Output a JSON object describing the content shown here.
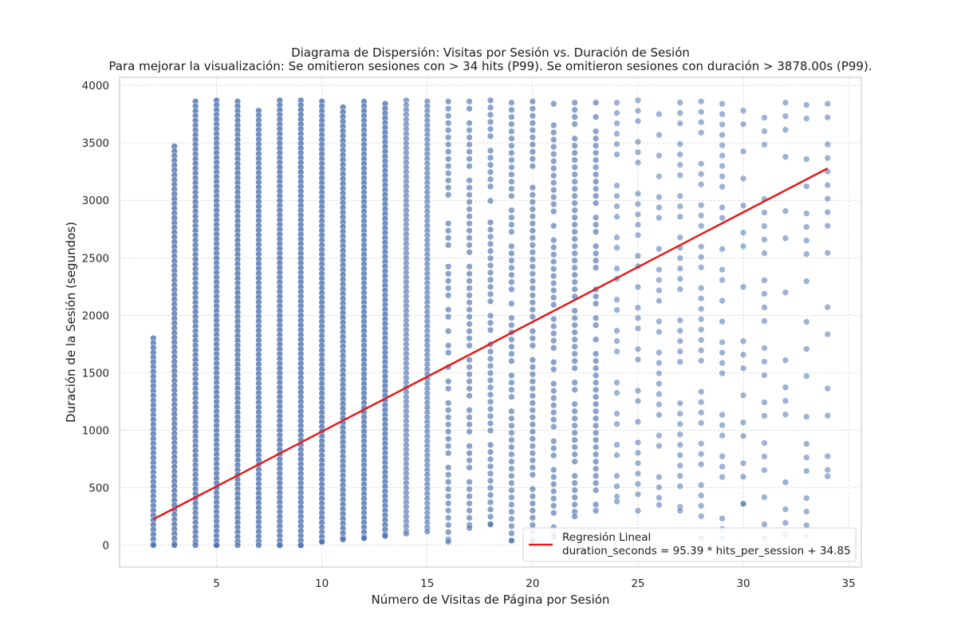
{
  "chart_data": {
    "type": "scatter",
    "title": "Diagrama de Dispersión: Visitas por Sesión vs. Duración de Sesión",
    "subtitle": "Para mejorar la visualización: Se omitieron sesiones con > 34 hits (P99). Se omitieron sesiones con duración > 3878.00s (P99).",
    "xlabel": "Número de Visitas de Página por Sesión",
    "ylabel": "Duración de la Sesión (segundos)",
    "xlim": [
      0.4,
      35.6
    ],
    "ylim": [
      -190,
      4070
    ],
    "xticks": [
      5,
      10,
      15,
      20,
      25,
      30,
      35
    ],
    "yticks": [
      0,
      500,
      1000,
      1500,
      2000,
      2500,
      3000,
      3500,
      4000
    ],
    "grid": true,
    "legend_position": "lower-right",
    "colors": {
      "points": "#4c72b0",
      "regression": "#e41a1c"
    },
    "series": [
      {
        "type": "scatter",
        "x_values": [
          2,
          3,
          4,
          5,
          6,
          7,
          8,
          9,
          10,
          11,
          12,
          13,
          14,
          15,
          16,
          17,
          18,
          19,
          20,
          21,
          22,
          23,
          24,
          25,
          26,
          27,
          28,
          29,
          30,
          31,
          32,
          33,
          34
        ],
        "y_ranges": [
          [
            0,
            1800
          ],
          [
            0,
            3470
          ],
          [
            0,
            3860
          ],
          [
            0,
            3870
          ],
          [
            0,
            3860
          ],
          [
            0,
            3780
          ],
          [
            0,
            3870
          ],
          [
            0,
            3870
          ],
          [
            30,
            3860
          ],
          [
            50,
            3810
          ],
          [
            60,
            3860
          ],
          [
            80,
            3840
          ],
          [
            100,
            3870
          ],
          [
            120,
            3860
          ],
          [
            30,
            3860
          ],
          [
            150,
            3860
          ],
          [
            180,
            3870
          ],
          [
            40,
            3850
          ],
          [
            40,
            3860
          ],
          [
            70,
            3840
          ],
          [
            250,
            3850
          ],
          [
            300,
            3850
          ],
          [
            380,
            3850
          ],
          [
            300,
            3870
          ],
          [
            350,
            3750
          ],
          [
            300,
            3850
          ],
          [
            60,
            3860
          ],
          [
            60,
            3840
          ],
          [
            360,
            3780
          ],
          [
            60,
            3720
          ],
          [
            90,
            3850
          ],
          [
            80,
            3830
          ],
          [
            600,
            3840
          ]
        ]
      },
      {
        "type": "line",
        "name": "Regresión Lineal",
        "label": "duration_seconds = 95.39 * hits_per_session + 34.85",
        "x": [
          2,
          34
        ],
        "y": [
          225.63,
          3278.11
        ]
      }
    ]
  }
}
